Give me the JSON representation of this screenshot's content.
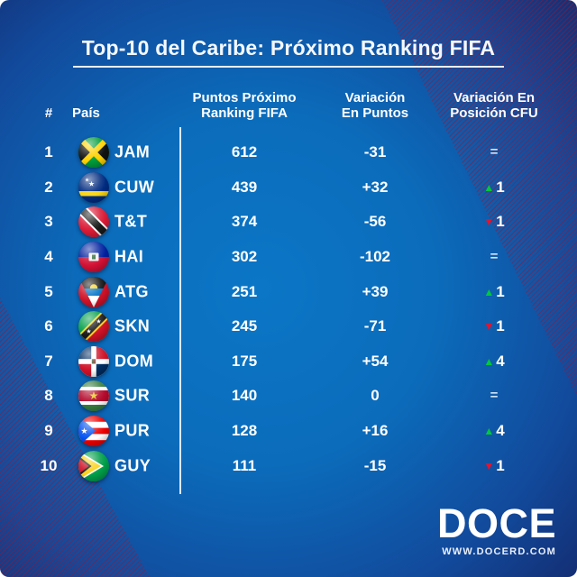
{
  "title": "Top-10 del Caribe: Próximo Ranking FIFA",
  "table": {
    "headers": {
      "rank": "#",
      "country": "País",
      "points_line1": "Puntos Próximo",
      "points_line2": "Ranking FIFA",
      "variation_line1": "Variación",
      "variation_line2": "En Puntos",
      "position_line1": "Variación En",
      "position_line2": "Posición CFU"
    },
    "rows": [
      {
        "rank": "1",
        "code": "JAM",
        "flag": "jamaica-flag",
        "points": "612",
        "variation": "-31",
        "position_change": "equal",
        "position_value": ""
      },
      {
        "rank": "2",
        "code": "CUW",
        "flag": "curacao-flag",
        "points": "439",
        "variation": "+32",
        "position_change": "up",
        "position_value": "1"
      },
      {
        "rank": "3",
        "code": "T&T",
        "flag": "trinidad-tobago-flag",
        "points": "374",
        "variation": "-56",
        "position_change": "down",
        "position_value": "1"
      },
      {
        "rank": "4",
        "code": "HAI",
        "flag": "haiti-flag",
        "points": "302",
        "variation": "-102",
        "position_change": "equal",
        "position_value": ""
      },
      {
        "rank": "5",
        "code": "ATG",
        "flag": "antigua-barbuda-flag",
        "points": "251",
        "variation": "+39",
        "position_change": "up",
        "position_value": "1"
      },
      {
        "rank": "6",
        "code": "SKN",
        "flag": "saint-kitts-nevis-flag",
        "points": "245",
        "variation": "-71",
        "position_change": "down",
        "position_value": "1"
      },
      {
        "rank": "7",
        "code": "DOM",
        "flag": "dominican-republic-flag",
        "points": "175",
        "variation": "+54",
        "position_change": "up",
        "position_value": "4"
      },
      {
        "rank": "8",
        "code": "SUR",
        "flag": "suriname-flag",
        "points": "140",
        "variation": "0",
        "position_change": "equal",
        "position_value": ""
      },
      {
        "rank": "9",
        "code": "PUR",
        "flag": "puerto-rico-flag",
        "points": "128",
        "variation": "+16",
        "position_change": "up",
        "position_value": "4"
      },
      {
        "rank": "10",
        "code": "GUY",
        "flag": "guyana-flag",
        "points": "111",
        "variation": "-15",
        "position_change": "down",
        "position_value": "1"
      }
    ]
  },
  "icons": {
    "up": "▲",
    "down": "▼",
    "equal": "="
  },
  "footer": {
    "logo": "DOCE",
    "website": "WWW.DOCERD.COM"
  },
  "colors": {
    "up_green": "#00c93c",
    "down_red": "#e8112d",
    "equal_gray": "#cfe2f8",
    "stripe_accent": "#94163a",
    "background_center": "#0b76c6",
    "background_edge": "#141f5b"
  }
}
